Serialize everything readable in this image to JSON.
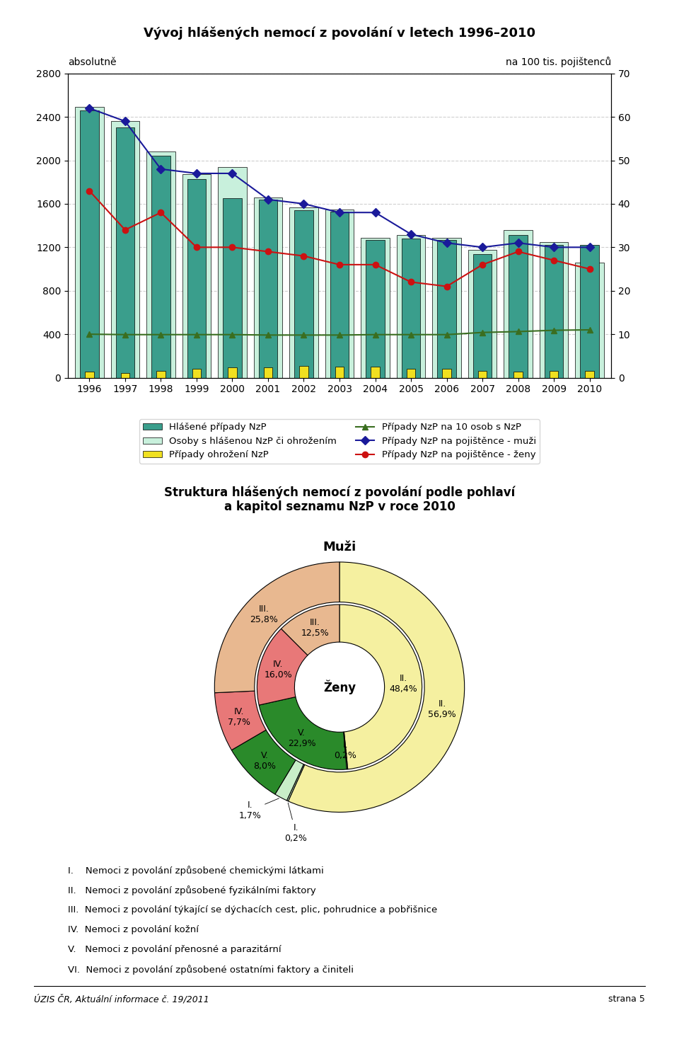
{
  "chart_data": [
    {
      "type": "bar",
      "title": "Vývoj hlášených nemocí z povolání v letech 1996–2010",
      "ylabel": "absolutně",
      "y2label": "na 100 tis. pojištenců",
      "categories": [
        "1996",
        "1997",
        "1998",
        "1999",
        "2000",
        "2001",
        "2002",
        "2003",
        "2004",
        "2005",
        "2006",
        "2007",
        "2008",
        "2009",
        "2010"
      ],
      "series": [
        {
          "name": "Hlášené případy NzP",
          "type": "bar",
          "color": "#3a9e8c",
          "values": [
            2458,
            2300,
            2040,
            1830,
            1650,
            1640,
            1540,
            1530,
            1270,
            1280,
            1270,
            1140,
            1310,
            1220,
            1220
          ]
        },
        {
          "name": "Osoby s hlášenou NzP či ohrožením",
          "type": "bar",
          "color": "#c8f0dc",
          "values": [
            2490,
            2360,
            2080,
            1870,
            1940,
            1660,
            1570,
            1545,
            1290,
            1310,
            1290,
            1175,
            1360,
            1245,
            1060
          ]
        },
        {
          "name": "Případy ohrožení NzP",
          "type": "bar",
          "color": "#f0e020",
          "values": [
            55,
            40,
            60,
            80,
            95,
            95,
            110,
            100,
            100,
            80,
            80,
            65,
            55,
            65,
            60
          ]
        },
        {
          "name": "Případy NzP na 10 osob s NzP",
          "type": "line",
          "axis": "y2",
          "color": "#3a6e20",
          "marker": "triangle",
          "values": [
            10.0,
            9.9,
            9.9,
            9.9,
            9.9,
            9.8,
            9.8,
            9.8,
            9.9,
            9.9,
            9.9,
            10.4,
            10.6,
            10.9,
            11.0
          ]
        },
        {
          "name": "Případy NzP na pojištěnce - muži",
          "type": "line",
          "axis": "y2",
          "color": "#1a1a9a",
          "marker": "diamond",
          "values": [
            62,
            59,
            48,
            47,
            47,
            41,
            40,
            38,
            38,
            33,
            31,
            30,
            31,
            30,
            30
          ]
        },
        {
          "name": "Případy NzP na pojištěnce - ženy",
          "type": "line",
          "axis": "y2",
          "color": "#cc1111",
          "marker": "circle",
          "values": [
            43,
            34,
            38,
            30,
            30,
            29,
            28,
            26,
            26,
            22,
            21,
            26,
            29,
            27,
            25
          ]
        }
      ],
      "ylim": [
        0,
        2800
      ],
      "yticks": [
        0,
        400,
        800,
        1200,
        1600,
        2000,
        2400,
        2800
      ],
      "y2lim": [
        0,
        70
      ],
      "y2ticks": [
        0,
        10,
        20,
        30,
        40,
        50,
        60,
        70
      ],
      "grid": true,
      "legend": "lower center"
    },
    {
      "type": "pie",
      "title": "Struktura hlášených nemocí z povolání podle pohlaví\na kapitol seznamu NzP v roce 2010",
      "series": [
        {
          "name": "Muži",
          "values": [
            56.9,
            0.2,
            1.7,
            8.0,
            7.7,
            25.8
          ],
          "value_labels": [
            "II.\n56,9%",
            "I.\n0,2%",
            "I.\n1,7%",
            "V.\n8,0%",
            "IV.\n7,7%",
            "III.\n25,8%"
          ],
          "colors": [
            "#f5f0a0",
            "#c8eec8",
            "#c8eec8",
            "#2a8a2a",
            "#e87878",
            "#e8b890"
          ]
        },
        {
          "name": "Ženy",
          "values": [
            48.4,
            0.2,
            22.9,
            16.0,
            12.5
          ],
          "value_labels": [
            "II.\n48,4%",
            "I.\n0,2%",
            "V.\n22,9%",
            "IV.\n16,0%",
            "III.\n12,5%"
          ],
          "colors": [
            "#f5f0a0",
            "#c8eec8",
            "#2a8a2a",
            "#e87878",
            "#e8b890"
          ]
        }
      ]
    }
  ],
  "notes": [
    "I.    Nemoci z povolání způsobené chemickými látkami",
    "II.   Nemoci z povolání způsobené fyzikálními faktory",
    "III.  Nemoci z povolání týkající se dýchacích cest, plic, pohrudnice a pobřišnice",
    "IV.  Nemoci z povolání kožní",
    "V.   Nemoci z povolání přenosné a parazitární",
    "VI.  Nemoci z povolání způsobené ostatními faktory a činiteli"
  ],
  "footer": [
    "ÚZIS ČR, Aktuální informace č. 19/2011",
    "strana 5"
  ]
}
